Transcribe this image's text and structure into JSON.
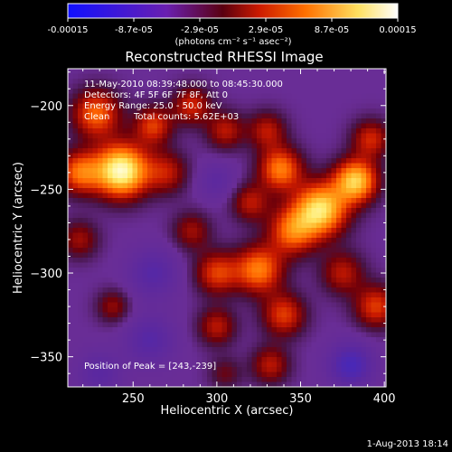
{
  "chart_data": {
    "type": "heatmap",
    "title": "Reconstructed RHESSI Image",
    "xlabel": "Heliocentric X (arcsec)",
    "ylabel": "Heliocentric Y (arcsec)",
    "xlim": [
      211,
      401
    ],
    "ylim": [
      -368,
      -178
    ],
    "xticks": [
      250,
      300,
      350,
      400
    ],
    "yticks": [
      -200,
      -250,
      -300,
      -350
    ],
    "colorbar": {
      "min": -0.00015,
      "max": 0.00015,
      "tick_labels": [
        "-0.00015",
        "-8.7e-05",
        "-2.9e-05",
        "2.9e-05",
        "8.7e-05",
        "0.00015"
      ],
      "units": "(photons cm⁻² s⁻¹ asec⁻²)",
      "colors": [
        "#1010ff",
        "#6a1fb0",
        "#8a0000",
        "#ff3000",
        "#ff9000",
        "#ffff80",
        "#ffffff"
      ]
    },
    "annotations": {
      "time_range": "11-May-2010 08:39:48.000 to 08:45:30.000",
      "detectors": "Detectors: 4F 5F 6F 7F 8F, Att 0",
      "energy_range": "Energy Range: 25.0 - 50.0 keV",
      "clean": "Clean",
      "total_counts": "Total counts: 5.62E+03",
      "peak": "Position of Peak = [243,-239]"
    },
    "peak": {
      "x": 243,
      "y": -239
    },
    "sources": [
      {
        "x": 243,
        "y": -239,
        "amplitude": 1.0,
        "sigma": 11
      },
      {
        "x": 218,
        "y": -240,
        "amplitude": 0.55,
        "sigma": 9
      },
      {
        "x": 228,
        "y": -205,
        "amplitude": 0.55,
        "sigma": 10
      },
      {
        "x": 262,
        "y": -212,
        "amplitude": 0.45,
        "sigma": 8
      },
      {
        "x": 270,
        "y": -240,
        "amplitude": 0.35,
        "sigma": 9
      },
      {
        "x": 285,
        "y": -200,
        "amplitude": 0.4,
        "sigma": 8
      },
      {
        "x": 305,
        "y": -215,
        "amplitude": 0.35,
        "sigma": 8
      },
      {
        "x": 330,
        "y": -215,
        "amplitude": 0.35,
        "sigma": 8
      },
      {
        "x": 338,
        "y": -238,
        "amplitude": 0.6,
        "sigma": 9
      },
      {
        "x": 362,
        "y": -262,
        "amplitude": 0.85,
        "sigma": 11
      },
      {
        "x": 383,
        "y": -245,
        "amplitude": 0.8,
        "sigma": 9
      },
      {
        "x": 392,
        "y": -220,
        "amplitude": 0.4,
        "sigma": 8
      },
      {
        "x": 345,
        "y": -275,
        "amplitude": 0.55,
        "sigma": 10
      },
      {
        "x": 325,
        "y": -298,
        "amplitude": 0.6,
        "sigma": 10
      },
      {
        "x": 300,
        "y": -300,
        "amplitude": 0.45,
        "sigma": 9
      },
      {
        "x": 320,
        "y": -258,
        "amplitude": 0.35,
        "sigma": 8
      },
      {
        "x": 285,
        "y": -275,
        "amplitude": 0.3,
        "sigma": 8
      },
      {
        "x": 340,
        "y": -325,
        "amplitude": 0.45,
        "sigma": 9
      },
      {
        "x": 300,
        "y": -332,
        "amplitude": 0.35,
        "sigma": 8
      },
      {
        "x": 375,
        "y": -300,
        "amplitude": 0.35,
        "sigma": 9
      },
      {
        "x": 395,
        "y": -320,
        "amplitude": 0.45,
        "sigma": 9
      },
      {
        "x": 218,
        "y": -280,
        "amplitude": 0.3,
        "sigma": 8
      },
      {
        "x": 238,
        "y": -320,
        "amplitude": 0.28,
        "sigma": 7
      },
      {
        "x": 332,
        "y": -355,
        "amplitude": 0.35,
        "sigma": 8
      },
      {
        "x": 305,
        "y": -360,
        "amplitude": 0.2,
        "sigma": 7
      },
      {
        "x": 380,
        "y": -355,
        "amplitude": -0.45,
        "sigma": 9
      },
      {
        "x": 262,
        "y": -300,
        "amplitude": -0.3,
        "sigma": 10
      },
      {
        "x": 260,
        "y": -340,
        "amplitude": -0.3,
        "sigma": 10
      },
      {
        "x": 300,
        "y": -245,
        "amplitude": -0.2,
        "sigma": 8
      },
      {
        "x": 230,
        "y": -360,
        "amplitude": -0.25,
        "sigma": 9
      }
    ]
  },
  "footer": {
    "date": "1-Aug-2013 18:14"
  }
}
